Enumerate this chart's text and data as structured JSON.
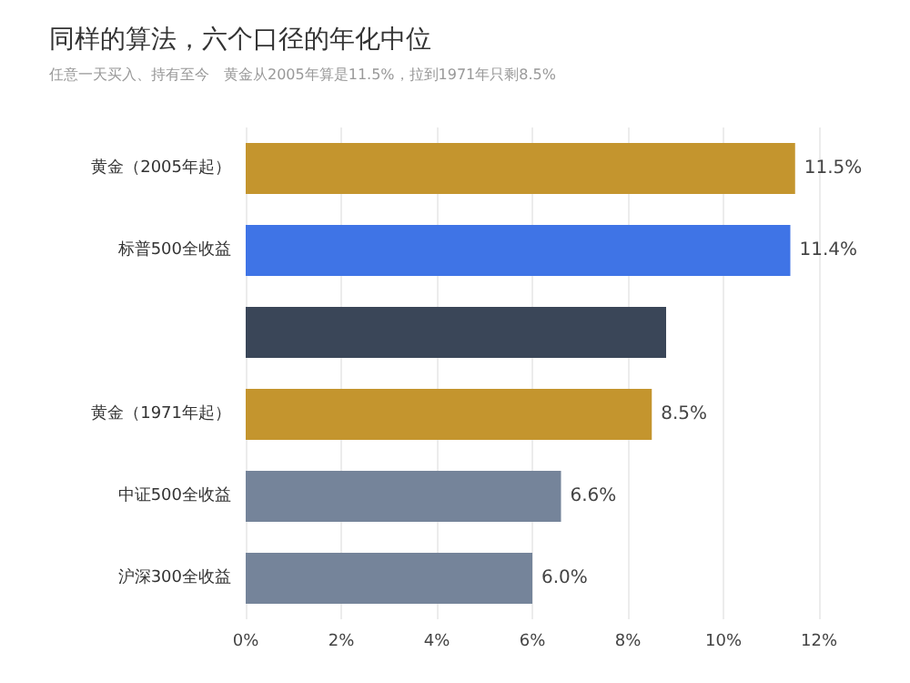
{
  "chart_data": {
    "type": "bar",
    "orientation": "horizontal",
    "title": "同样的算法，六个口径的年化中位",
    "subtitle": "任意一天买入、持有至今　黄金从2005年算是11.5%，拉到1971年只剩8.5%",
    "categories": [
      "黄金（2005年起）",
      "标普500全收益",
      null,
      "黄金（1971年起）",
      "中证500全收益",
      "沪深300全收益"
    ],
    "values": [
      11.5,
      11.4,
      8.8,
      8.5,
      6.6,
      6.0
    ],
    "colors": [
      "#c4952e",
      "#3f74e6",
      "#3a4658",
      "#c4952e",
      "#75849a",
      "#75849a"
    ],
    "value_labels": [
      "11.5%",
      "11.4%",
      null,
      "8.5%",
      "6.6%",
      "6.0%"
    ],
    "xlim": [
      0,
      12
    ],
    "xticks": [
      {
        "value": 0,
        "label": "0%"
      },
      {
        "value": 2,
        "label": "2%"
      },
      {
        "value": 4,
        "label": "4%"
      },
      {
        "value": 6,
        "label": "6%"
      },
      {
        "value": 8,
        "label": "8%"
      },
      {
        "value": 10,
        "label": "10%"
      },
      {
        "value": 12,
        "label": "12%"
      }
    ],
    "grid": "x"
  }
}
